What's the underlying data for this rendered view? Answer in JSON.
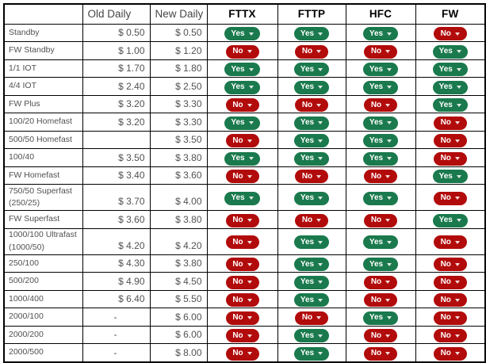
{
  "colors": {
    "yes_badge": "#1a7a4d",
    "no_badge": "#b20b0b",
    "border": "#000000",
    "body_text": "#515151",
    "header_money_text": "#464646",
    "header_tech_text": "#000000",
    "background": "#ffffff"
  },
  "table": {
    "headers": {
      "plan": "",
      "old_daily": "Old Daily",
      "new_daily": "New Daily",
      "techs": [
        "FTTX",
        "FTTP",
        "HFC",
        "FW"
      ]
    },
    "rows": [
      {
        "plan": "Standby",
        "plan_note": "",
        "old": "$ 0.50",
        "new": "$ 0.50",
        "fttx": "Yes",
        "fttp": "Yes",
        "hfc": "Yes",
        "fw": "No",
        "tall": false
      },
      {
        "plan": "FW Standby",
        "plan_note": "",
        "old": "$ 1.00",
        "new": "$ 1.20",
        "fttx": "No",
        "fttp": "No",
        "hfc": "No",
        "fw": "Yes",
        "tall": false
      },
      {
        "plan": "1/1 IOT",
        "plan_note": "",
        "old": "$ 1.70",
        "new": "$ 1.80",
        "fttx": "Yes",
        "fttp": "Yes",
        "hfc": "Yes",
        "fw": "Yes",
        "tall": false
      },
      {
        "plan": "4/4 IOT",
        "plan_note": "",
        "old": "$ 2.40",
        "new": "$ 2.50",
        "fttx": "Yes",
        "fttp": "Yes",
        "hfc": "Yes",
        "fw": "Yes",
        "tall": false
      },
      {
        "plan": "FW Plus",
        "plan_note": "",
        "old": "$ 3.20",
        "new": "$ 3.30",
        "fttx": "No",
        "fttp": "No",
        "hfc": "No",
        "fw": "Yes",
        "tall": false
      },
      {
        "plan": "100/20 Homefast",
        "plan_note": "",
        "old": "$ 3.20",
        "new": "$ 3.30",
        "fttx": "Yes",
        "fttp": "Yes",
        "hfc": "Yes",
        "fw": "No",
        "tall": false
      },
      {
        "plan": "500/50 Homefast",
        "plan_note": "",
        "old": "",
        "new": "$ 3.50",
        "fttx": "No",
        "fttp": "Yes",
        "hfc": "Yes",
        "fw": "No",
        "tall": false
      },
      {
        "plan": "100/40",
        "plan_note": "",
        "old": "$ 3.50",
        "new": "$ 3.80",
        "fttx": "Yes",
        "fttp": "Yes",
        "hfc": "Yes",
        "fw": "No",
        "tall": false
      },
      {
        "plan": "FW Homefast",
        "plan_note": "",
        "old": "$ 3.40",
        "new": "$ 3.60",
        "fttx": "No",
        "fttp": "No",
        "hfc": "No",
        "fw": "Yes",
        "tall": false
      },
      {
        "plan": "750/50 Superfast",
        "plan_note": "(250/25)",
        "old": "$ 3.70",
        "new": "$ 4.00",
        "fttx": "Yes",
        "fttp": "Yes",
        "hfc": "Yes",
        "fw": "No",
        "tall": true
      },
      {
        "plan": "FW Superfast",
        "plan_note": "",
        "old": "$ 3.60",
        "new": "$ 3.80",
        "fttx": "No",
        "fttp": "No",
        "hfc": "No",
        "fw": "Yes",
        "tall": false
      },
      {
        "plan": "1000/100 Ultrafast",
        "plan_note": "(1000/50)",
        "old": "$ 4.20",
        "new": "$ 4.20",
        "fttx": "No",
        "fttp": "Yes",
        "hfc": "Yes",
        "fw": "No",
        "tall": true
      },
      {
        "plan": "250/100",
        "plan_note": "",
        "old": "$ 4.30",
        "new": "$ 3.80",
        "fttx": "No",
        "fttp": "Yes",
        "hfc": "Yes",
        "fw": "No",
        "tall": false
      },
      {
        "plan": "500/200",
        "plan_note": "",
        "old": "$ 4.90",
        "new": "$ 4.50",
        "fttx": "No",
        "fttp": "Yes",
        "hfc": "No",
        "fw": "No",
        "tall": false
      },
      {
        "plan": "1000/400",
        "plan_note": "",
        "old": "$ 6.40",
        "new": "$ 5.50",
        "fttx": "No",
        "fttp": "Yes",
        "hfc": "No",
        "fw": "No",
        "tall": false
      },
      {
        "plan": "2000/100",
        "plan_note": "",
        "old": "-",
        "new": "$ 6.00",
        "fttx": "No",
        "fttp": "No",
        "hfc": "Yes",
        "fw": "No",
        "tall": false
      },
      {
        "plan": "2000/200",
        "plan_note": "",
        "old": "-",
        "new": "$ 6.00",
        "fttx": "No",
        "fttp": "Yes",
        "hfc": "No",
        "fw": "No",
        "tall": false
      },
      {
        "plan": "2000/500",
        "plan_note": "",
        "old": "-",
        "new": "$ 8.00",
        "fttx": "No",
        "fttp": "Yes",
        "hfc": "No",
        "fw": "No",
        "tall": false
      }
    ]
  }
}
